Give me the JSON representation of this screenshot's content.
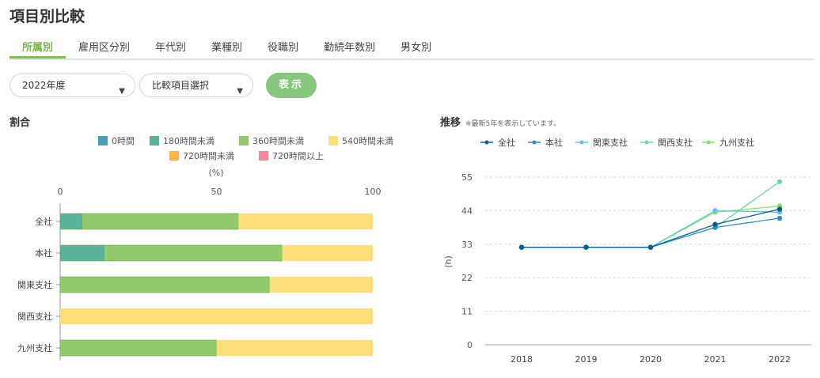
{
  "page": {
    "title": "項目別比較"
  },
  "tabs": [
    {
      "label": "所属別",
      "active": true
    },
    {
      "label": "雇用区分別",
      "active": false
    },
    {
      "label": "年代別",
      "active": false
    },
    {
      "label": "業種別",
      "active": false
    },
    {
      "label": "役職別",
      "active": false
    },
    {
      "label": "勤続年数別",
      "active": false
    },
    {
      "label": "男女別",
      "active": false
    }
  ],
  "controls": {
    "year_select": "2022年度",
    "item_select": "比較項目選択",
    "show_button": "表示"
  },
  "sections": {
    "ratio_title": "割合",
    "trend_title": "推移",
    "trend_note": "※最新5年を表示しています。"
  },
  "colors": {
    "accent": "#7cc05a",
    "button": "#86c77d"
  },
  "chart_data": [
    {
      "type": "bar",
      "orientation": "horizontal",
      "stacked": true,
      "title": "割合",
      "unit_label": "(%)",
      "categories": [
        "全社",
        "本社",
        "関東支社",
        "関西支社",
        "九州支社"
      ],
      "xlim": [
        0,
        100
      ],
      "x_ticks": [
        0,
        50,
        100
      ],
      "legend_position": "top",
      "series": [
        {
          "name": "0時間",
          "color": "#4a9bb9",
          "values": [
            0,
            0,
            0,
            0,
            0
          ]
        },
        {
          "name": "180時間未満",
          "color": "#5bb49a",
          "values": [
            7,
            14,
            0,
            0,
            0
          ]
        },
        {
          "name": "360時間未満",
          "color": "#92c96b",
          "values": [
            50,
            57,
            67,
            0,
            50
          ]
        },
        {
          "name": "540時間未満",
          "color": "#fcdf7c",
          "values": [
            43,
            29,
            33,
            100,
            50
          ]
        },
        {
          "name": "720時間未満",
          "color": "#fbb34a",
          "values": [
            0,
            0,
            0,
            0,
            0
          ]
        },
        {
          "name": "720時間以上",
          "color": "#f28b95",
          "values": [
            0,
            0,
            0,
            0,
            0
          ]
        }
      ]
    },
    {
      "type": "line",
      "title": "推移",
      "ylabel": "(h)",
      "x": [
        "2018",
        "2019",
        "2020",
        "2021",
        "2022"
      ],
      "ylim": [
        0,
        55
      ],
      "y_ticks": [
        0,
        11,
        22,
        33,
        44,
        55
      ],
      "grid": true,
      "legend_position": "top",
      "series": [
        {
          "name": "全社",
          "color": "#0a5e8f",
          "values": [
            32,
            32,
            32,
            39.5,
            44.5
          ]
        },
        {
          "name": "本社",
          "color": "#2a8fc4",
          "values": [
            32,
            32,
            32,
            38.5,
            41.5
          ]
        },
        {
          "name": "関東支社",
          "color": "#5cc3e6",
          "values": [
            32,
            32,
            32,
            44,
            43.5
          ]
        },
        {
          "name": "関西支社",
          "color": "#6fd4b0",
          "values": [
            32,
            32,
            32,
            38.5,
            53.5
          ]
        },
        {
          "name": "九州支社",
          "color": "#8ee05e",
          "values": [
            32,
            32,
            32,
            43.5,
            45.5
          ]
        }
      ]
    }
  ]
}
